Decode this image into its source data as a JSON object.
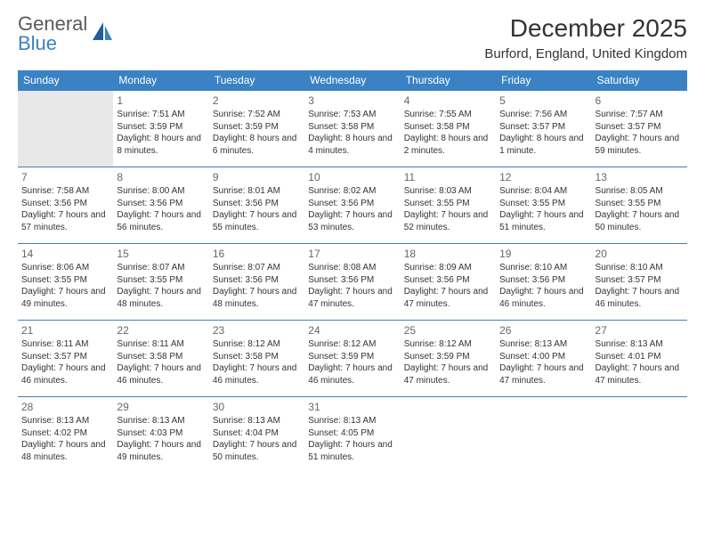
{
  "brand": {
    "top": "General",
    "bottom": "Blue"
  },
  "title": "December 2025",
  "location": "Burford, England, United Kingdom",
  "colors": {
    "header_bg": "#3b82c4",
    "header_text": "#ffffff",
    "rule": "#3b82c4",
    "body_text": "#333333",
    "daynum": "#666666",
    "empty_bg": "#e8e8e8",
    "logo_top": "#5a5a5a",
    "logo_bottom": "#3b82c4"
  },
  "day_headers": [
    "Sunday",
    "Monday",
    "Tuesday",
    "Wednesday",
    "Thursday",
    "Friday",
    "Saturday"
  ],
  "weeks": [
    [
      null,
      {
        "n": "1",
        "sunrise": "7:51 AM",
        "sunset": "3:59 PM",
        "daylight": "8 hours and 8 minutes."
      },
      {
        "n": "2",
        "sunrise": "7:52 AM",
        "sunset": "3:59 PM",
        "daylight": "8 hours and 6 minutes."
      },
      {
        "n": "3",
        "sunrise": "7:53 AM",
        "sunset": "3:58 PM",
        "daylight": "8 hours and 4 minutes."
      },
      {
        "n": "4",
        "sunrise": "7:55 AM",
        "sunset": "3:58 PM",
        "daylight": "8 hours and 2 minutes."
      },
      {
        "n": "5",
        "sunrise": "7:56 AM",
        "sunset": "3:57 PM",
        "daylight": "8 hours and 1 minute."
      },
      {
        "n": "6",
        "sunrise": "7:57 AM",
        "sunset": "3:57 PM",
        "daylight": "7 hours and 59 minutes."
      }
    ],
    [
      {
        "n": "7",
        "sunrise": "7:58 AM",
        "sunset": "3:56 PM",
        "daylight": "7 hours and 57 minutes."
      },
      {
        "n": "8",
        "sunrise": "8:00 AM",
        "sunset": "3:56 PM",
        "daylight": "7 hours and 56 minutes."
      },
      {
        "n": "9",
        "sunrise": "8:01 AM",
        "sunset": "3:56 PM",
        "daylight": "7 hours and 55 minutes."
      },
      {
        "n": "10",
        "sunrise": "8:02 AM",
        "sunset": "3:56 PM",
        "daylight": "7 hours and 53 minutes."
      },
      {
        "n": "11",
        "sunrise": "8:03 AM",
        "sunset": "3:55 PM",
        "daylight": "7 hours and 52 minutes."
      },
      {
        "n": "12",
        "sunrise": "8:04 AM",
        "sunset": "3:55 PM",
        "daylight": "7 hours and 51 minutes."
      },
      {
        "n": "13",
        "sunrise": "8:05 AM",
        "sunset": "3:55 PM",
        "daylight": "7 hours and 50 minutes."
      }
    ],
    [
      {
        "n": "14",
        "sunrise": "8:06 AM",
        "sunset": "3:55 PM",
        "daylight": "7 hours and 49 minutes."
      },
      {
        "n": "15",
        "sunrise": "8:07 AM",
        "sunset": "3:55 PM",
        "daylight": "7 hours and 48 minutes."
      },
      {
        "n": "16",
        "sunrise": "8:07 AM",
        "sunset": "3:56 PM",
        "daylight": "7 hours and 48 minutes."
      },
      {
        "n": "17",
        "sunrise": "8:08 AM",
        "sunset": "3:56 PM",
        "daylight": "7 hours and 47 minutes."
      },
      {
        "n": "18",
        "sunrise": "8:09 AM",
        "sunset": "3:56 PM",
        "daylight": "7 hours and 47 minutes."
      },
      {
        "n": "19",
        "sunrise": "8:10 AM",
        "sunset": "3:56 PM",
        "daylight": "7 hours and 46 minutes."
      },
      {
        "n": "20",
        "sunrise": "8:10 AM",
        "sunset": "3:57 PM",
        "daylight": "7 hours and 46 minutes."
      }
    ],
    [
      {
        "n": "21",
        "sunrise": "8:11 AM",
        "sunset": "3:57 PM",
        "daylight": "7 hours and 46 minutes."
      },
      {
        "n": "22",
        "sunrise": "8:11 AM",
        "sunset": "3:58 PM",
        "daylight": "7 hours and 46 minutes."
      },
      {
        "n": "23",
        "sunrise": "8:12 AM",
        "sunset": "3:58 PM",
        "daylight": "7 hours and 46 minutes."
      },
      {
        "n": "24",
        "sunrise": "8:12 AM",
        "sunset": "3:59 PM",
        "daylight": "7 hours and 46 minutes."
      },
      {
        "n": "25",
        "sunrise": "8:12 AM",
        "sunset": "3:59 PM",
        "daylight": "7 hours and 47 minutes."
      },
      {
        "n": "26",
        "sunrise": "8:13 AM",
        "sunset": "4:00 PM",
        "daylight": "7 hours and 47 minutes."
      },
      {
        "n": "27",
        "sunrise": "8:13 AM",
        "sunset": "4:01 PM",
        "daylight": "7 hours and 47 minutes."
      }
    ],
    [
      {
        "n": "28",
        "sunrise": "8:13 AM",
        "sunset": "4:02 PM",
        "daylight": "7 hours and 48 minutes."
      },
      {
        "n": "29",
        "sunrise": "8:13 AM",
        "sunset": "4:03 PM",
        "daylight": "7 hours and 49 minutes."
      },
      {
        "n": "30",
        "sunrise": "8:13 AM",
        "sunset": "4:04 PM",
        "daylight": "7 hours and 50 minutes."
      },
      {
        "n": "31",
        "sunrise": "8:13 AM",
        "sunset": "4:05 PM",
        "daylight": "7 hours and 51 minutes."
      },
      null,
      null,
      null
    ]
  ],
  "labels": {
    "sunrise": "Sunrise:",
    "sunset": "Sunset:",
    "daylight": "Daylight:"
  }
}
